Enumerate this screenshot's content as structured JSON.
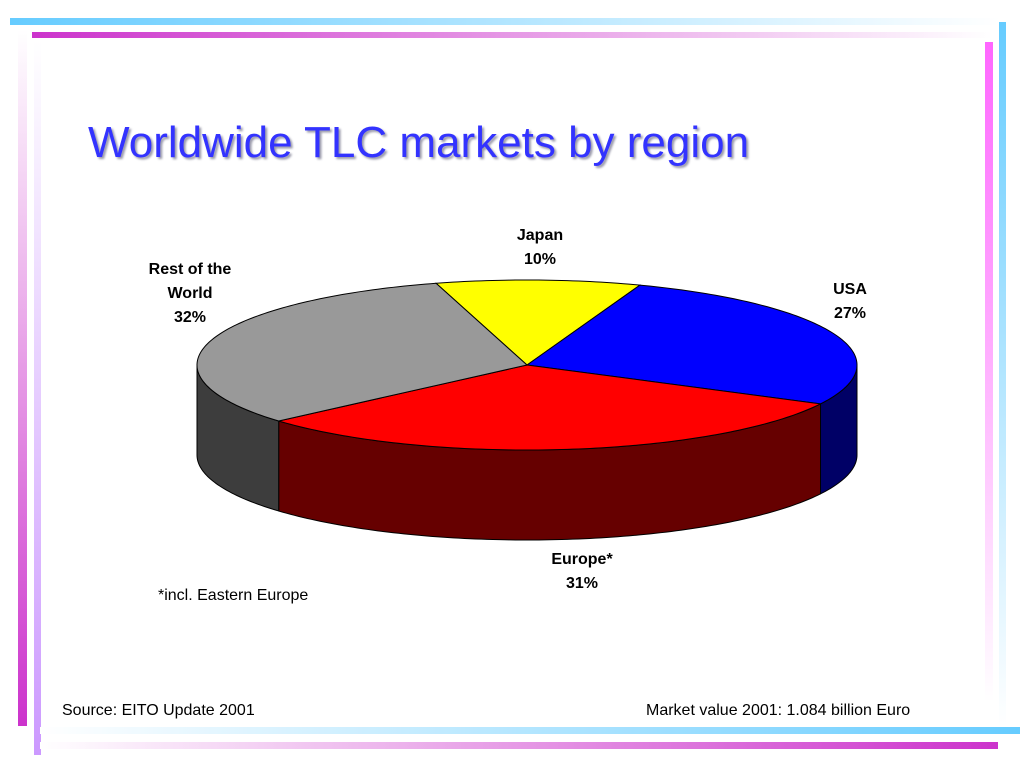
{
  "title": "Worldwide TLC markets by region",
  "chart_data": {
    "type": "pie",
    "categories": [
      "Japan",
      "USA",
      "Europe*",
      "Rest of the World"
    ],
    "values": [
      10,
      27,
      31,
      32
    ],
    "value_labels": [
      "10%",
      "27%",
      "31%",
      "32%"
    ],
    "colors": [
      "#ffff00",
      "#0000ff",
      "#ff0000",
      "#999999"
    ],
    "note": "*incl. Eastern Europe"
  },
  "footer": {
    "source": "Source: EITO Update 2001",
    "market_value": "Market value 2001: 1.084 billion Euro"
  }
}
